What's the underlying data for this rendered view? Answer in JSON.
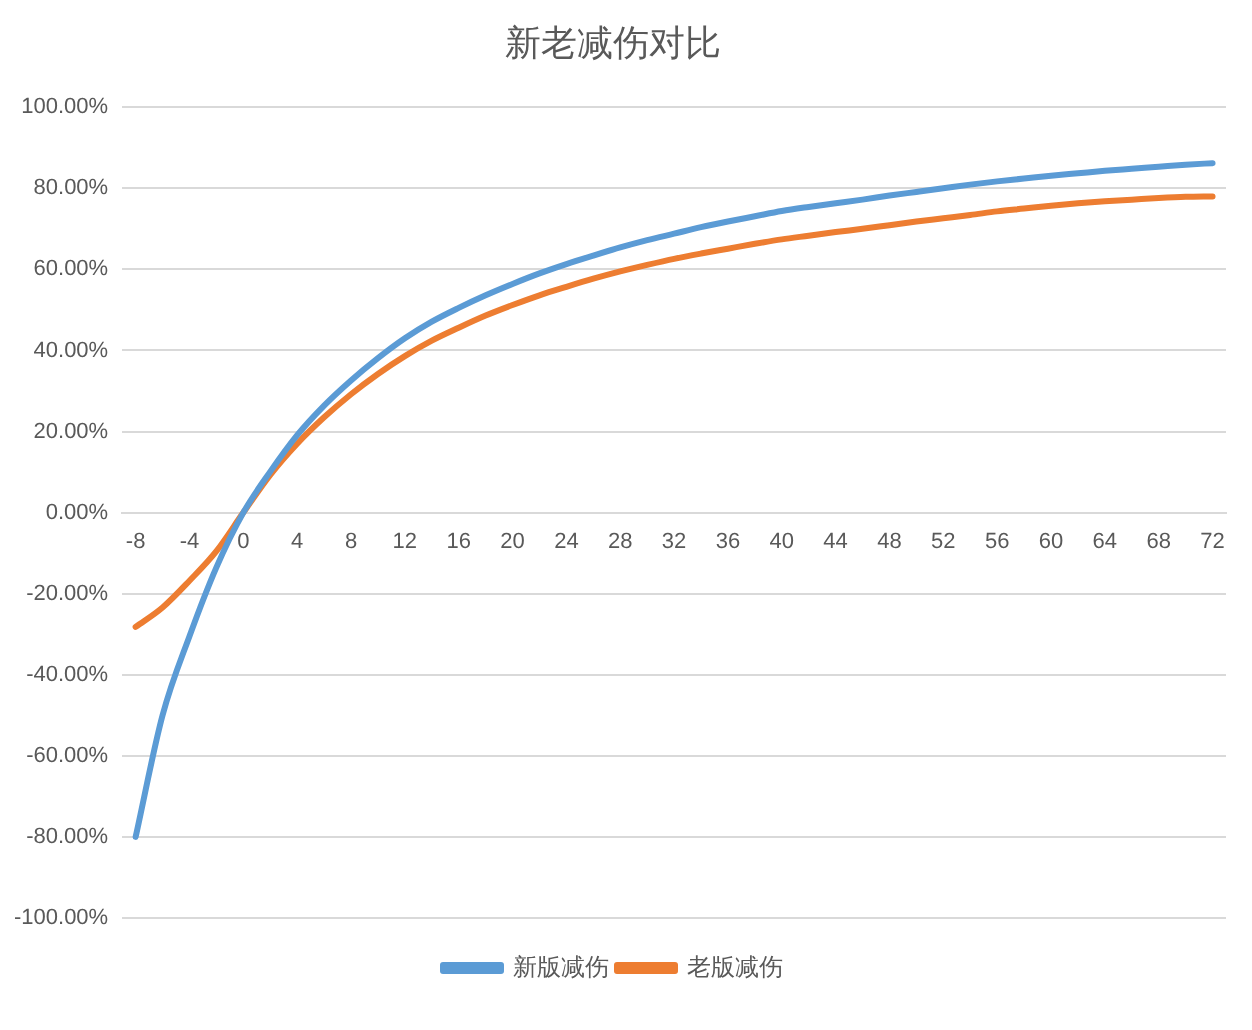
{
  "chart_data": {
    "type": "line",
    "title": "新老减伤对比",
    "x": [
      -8,
      -6,
      -4,
      -2,
      0,
      2,
      4,
      6,
      8,
      10,
      12,
      14,
      16,
      18,
      20,
      22,
      24,
      26,
      28,
      30,
      32,
      34,
      36,
      38,
      40,
      42,
      44,
      46,
      48,
      50,
      52,
      54,
      56,
      58,
      60,
      62,
      64,
      66,
      68,
      70,
      72
    ],
    "series": [
      {
        "name": "新版减伤",
        "color": "#5b9bd5",
        "values": [
          -80,
          -50,
          -30.5,
          -13.5,
          0,
          10.1,
          19.1,
          26.4,
          32.6,
          38.1,
          43.0,
          47.1,
          50.5,
          53.6,
          56.4,
          59.0,
          61.3,
          63.4,
          65.4,
          67.2,
          68.8,
          70.4,
          71.8,
          73.1,
          74.4,
          75.4,
          76.3,
          77.2,
          78.2,
          79.1,
          80.0,
          80.9,
          81.7,
          82.4,
          83.1,
          83.7,
          84.3,
          84.8,
          85.3,
          85.8,
          86.2
        ]
      },
      {
        "name": "老版减伤",
        "color": "#ed7d31",
        "values": [
          -28.2,
          -23.4,
          -16.8,
          -9.5,
          0,
          9.3,
          17.0,
          23.5,
          29.2,
          34.2,
          38.6,
          42.4,
          45.6,
          48.6,
          51.2,
          53.6,
          55.7,
          57.7,
          59.5,
          61.1,
          62.6,
          63.9,
          65.1,
          66.3,
          67.4,
          68.3,
          69.2,
          70.0,
          70.9,
          71.8,
          72.6,
          73.4,
          74.3,
          75.0,
          75.7,
          76.3,
          76.8,
          77.2,
          77.6,
          77.9,
          78.0
        ]
      }
    ],
    "xlim": [
      -9,
      73
    ],
    "xticks": [
      -8,
      -4,
      0,
      4,
      8,
      12,
      16,
      20,
      24,
      28,
      32,
      36,
      40,
      44,
      48,
      52,
      56,
      60,
      64,
      68,
      72
    ],
    "ylim": [
      -100,
      100
    ],
    "yticks": [
      {
        "value": -100,
        "label": "-100.00%"
      },
      {
        "value": -80,
        "label": "-80.00%"
      },
      {
        "value": -60,
        "label": "-60.00%"
      },
      {
        "value": -40,
        "label": "-40.00%"
      },
      {
        "value": -20,
        "label": "-20.00%"
      },
      {
        "value": 0,
        "label": "0.00%"
      },
      {
        "value": 20,
        "label": "20.00%"
      },
      {
        "value": 40,
        "label": "40.00%"
      },
      {
        "value": 60,
        "label": "60.00%"
      },
      {
        "value": 80,
        "label": "80.00%"
      },
      {
        "value": 100,
        "label": "100.00%"
      }
    ],
    "grid": "y",
    "legend": "bottom",
    "marker": "none"
  }
}
